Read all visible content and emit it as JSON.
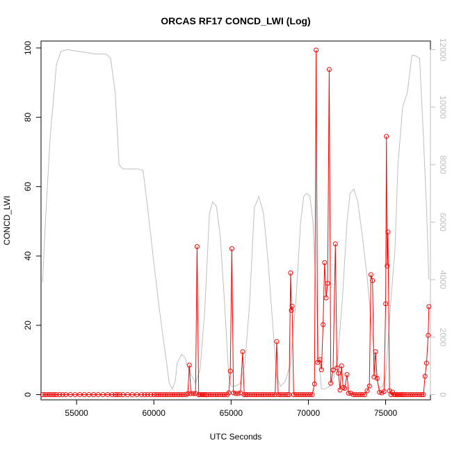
{
  "chart_data": {
    "type": "line",
    "title": "ORCAS RF17 CONCD_LWI (Log)",
    "xlabel": "UTC Seconds",
    "ylabel": "CONCD_LWI",
    "xlim": [
      52700,
      77900
    ],
    "ylim": [
      -1.5,
      102
    ],
    "x_ticks": [
      55000,
      60000,
      65000,
      70000,
      75000
    ],
    "y_ticks": [
      0,
      20,
      40,
      60,
      80,
      100
    ],
    "y2lim": [
      -180,
      12300
    ],
    "y2_ticks": [
      0,
      2000,
      4000,
      6000,
      8000,
      10000,
      12000
    ],
    "grid": false,
    "legend": "none",
    "colors": {
      "concentration": "#ff0000",
      "altitude": "#bebebe",
      "axes": "#000000"
    },
    "series": [
      {
        "role": "concentration",
        "axis": "left",
        "style": "line+points",
        "points": [
          [
            52800,
            0
          ],
          [
            52950,
            0
          ],
          [
            53100,
            0
          ],
          [
            53250,
            0
          ],
          [
            53400,
            0
          ],
          [
            53550,
            0
          ],
          [
            53700,
            0
          ],
          [
            53900,
            0
          ],
          [
            54100,
            0
          ],
          [
            54300,
            0
          ],
          [
            54600,
            0
          ],
          [
            54900,
            0
          ],
          [
            55200,
            0
          ],
          [
            55500,
            0
          ],
          [
            55800,
            0
          ],
          [
            56100,
            0
          ],
          [
            56400,
            0
          ],
          [
            56700,
            0
          ],
          [
            57000,
            0
          ],
          [
            57300,
            0
          ],
          [
            57500,
            0
          ],
          [
            57650,
            0
          ],
          [
            57800,
            0
          ],
          [
            58000,
            0
          ],
          [
            58300,
            0
          ],
          [
            58600,
            0
          ],
          [
            58900,
            0
          ],
          [
            59200,
            0
          ],
          [
            59400,
            0
          ],
          [
            59600,
            0
          ],
          [
            59800,
            0
          ],
          [
            60000,
            0
          ],
          [
            60150,
            0
          ],
          [
            60300,
            0
          ],
          [
            60450,
            0
          ],
          [
            60600,
            0
          ],
          [
            60750,
            0
          ],
          [
            60900,
            0
          ],
          [
            61050,
            0
          ],
          [
            61200,
            0
          ],
          [
            61350,
            0
          ],
          [
            61500,
            0
          ],
          [
            61650,
            0
          ],
          [
            61800,
            0
          ],
          [
            61950,
            0
          ],
          [
            62100,
            0
          ],
          [
            62200,
            0.3
          ],
          [
            62300,
            8.5
          ],
          [
            62400,
            0.3
          ],
          [
            62550,
            0.3
          ],
          [
            62700,
            0.3
          ],
          [
            62800,
            42.7
          ],
          [
            62900,
            0
          ],
          [
            63000,
            0
          ],
          [
            63100,
            0
          ],
          [
            63200,
            0
          ],
          [
            63300,
            0
          ],
          [
            63400,
            0
          ],
          [
            63550,
            0
          ],
          [
            63700,
            0
          ],
          [
            63850,
            0
          ],
          [
            64000,
            0
          ],
          [
            64150,
            0
          ],
          [
            64300,
            0
          ],
          [
            64450,
            0
          ],
          [
            64600,
            0
          ],
          [
            64750,
            0
          ],
          [
            64850,
            0.5
          ],
          [
            64950,
            6.8
          ],
          [
            65050,
            42.1
          ],
          [
            65150,
            0.5
          ],
          [
            65300,
            0.3
          ],
          [
            65450,
            0.3
          ],
          [
            65600,
            0.5
          ],
          [
            65750,
            12.4
          ],
          [
            65850,
            0
          ],
          [
            65950,
            0
          ],
          [
            66050,
            0
          ],
          [
            66200,
            0
          ],
          [
            66350,
            0
          ],
          [
            66500,
            0
          ],
          [
            66650,
            0
          ],
          [
            66800,
            0
          ],
          [
            66950,
            0
          ],
          [
            67100,
            0
          ],
          [
            67250,
            0
          ],
          [
            67400,
            0
          ],
          [
            67550,
            0
          ],
          [
            67700,
            0
          ],
          [
            67850,
            0
          ],
          [
            67950,
            15.3
          ],
          [
            68050,
            0
          ],
          [
            68200,
            0
          ],
          [
            68350,
            0
          ],
          [
            68500,
            0
          ],
          [
            68650,
            0
          ],
          [
            68750,
            0
          ],
          [
            68850,
            35.1
          ],
          [
            68900,
            24.3
          ],
          [
            68950,
            25.5
          ],
          [
            69050,
            0
          ],
          [
            69200,
            0
          ],
          [
            69350,
            0
          ],
          [
            69500,
            0
          ],
          [
            69650,
            0
          ],
          [
            69800,
            0
          ],
          [
            69950,
            0
          ],
          [
            70100,
            0
          ],
          [
            70250,
            0
          ],
          [
            70400,
            3.1
          ],
          [
            70500,
            99.4
          ],
          [
            70600,
            9.3
          ],
          [
            70750,
            10.1
          ],
          [
            70850,
            7.2
          ],
          [
            70950,
            20.2
          ],
          [
            71050,
            38.1
          ],
          [
            71150,
            27.9
          ],
          [
            71250,
            32.1
          ],
          [
            71350,
            93.8
          ],
          [
            71450,
            3.3
          ],
          [
            71600,
            7.1
          ],
          [
            71750,
            43.5
          ],
          [
            71850,
            7.7
          ],
          [
            71950,
            6.2
          ],
          [
            72050,
            1.3
          ],
          [
            72150,
            8.3
          ],
          [
            72250,
            2.1
          ],
          [
            72350,
            1.8
          ],
          [
            72500,
            5.8
          ],
          [
            72600,
            0.4
          ],
          [
            72750,
            0.4
          ],
          [
            72900,
            0
          ],
          [
            73050,
            0
          ],
          [
            73200,
            0
          ],
          [
            73350,
            0
          ],
          [
            73500,
            0
          ],
          [
            73650,
            0
          ],
          [
            73800,
            1.1
          ],
          [
            73950,
            2.5
          ],
          [
            74050,
            34.6
          ],
          [
            74150,
            32.9
          ],
          [
            74250,
            5.1
          ],
          [
            74350,
            12.4
          ],
          [
            74450,
            4.7
          ],
          [
            74600,
            0.7
          ],
          [
            74750,
            0.5
          ],
          [
            74900,
            0.9
          ],
          [
            75000,
            26.2
          ],
          [
            75050,
            74.5
          ],
          [
            75100,
            37.1
          ],
          [
            75150,
            46.9
          ],
          [
            75250,
            1.1
          ],
          [
            75350,
            0
          ],
          [
            75450,
            0.7
          ],
          [
            75550,
            0
          ],
          [
            75650,
            0
          ],
          [
            75750,
            0
          ],
          [
            75850,
            0
          ],
          [
            75950,
            0
          ],
          [
            76050,
            0
          ],
          [
            76150,
            0
          ],
          [
            76300,
            0
          ],
          [
            76450,
            0
          ],
          [
            76600,
            0
          ],
          [
            76750,
            0
          ],
          [
            76900,
            0
          ],
          [
            77050,
            0
          ],
          [
            77200,
            0
          ],
          [
            77350,
            0
          ],
          [
            77450,
            0
          ],
          [
            77550,
            5.3
          ],
          [
            77650,
            9.1
          ],
          [
            77750,
            17.1
          ],
          [
            77800,
            25.4
          ]
        ]
      },
      {
        "role": "altitude",
        "axis": "right",
        "style": "line",
        "points": [
          [
            52800,
            3900
          ],
          [
            53000,
            6200
          ],
          [
            53300,
            9000
          ],
          [
            53700,
            11500
          ],
          [
            54000,
            11950
          ],
          [
            54400,
            12000
          ],
          [
            55000,
            11950
          ],
          [
            55600,
            11900
          ],
          [
            56200,
            11850
          ],
          [
            56900,
            11850
          ],
          [
            57200,
            11700
          ],
          [
            57500,
            10500
          ],
          [
            57750,
            8000
          ],
          [
            58000,
            7850
          ],
          [
            58500,
            7850
          ],
          [
            59000,
            7850
          ],
          [
            59300,
            7800
          ],
          [
            59600,
            6500
          ],
          [
            60000,
            4600
          ],
          [
            60400,
            2800
          ],
          [
            60800,
            1200
          ],
          [
            61000,
            400
          ],
          [
            61200,
            200
          ],
          [
            61400,
            500
          ],
          [
            61500,
            1100
          ],
          [
            61800,
            1400
          ],
          [
            62000,
            1300
          ],
          [
            62300,
            800
          ],
          [
            62700,
            400
          ],
          [
            63000,
            900
          ],
          [
            63300,
            3000
          ],
          [
            63600,
            6300
          ],
          [
            63800,
            6700
          ],
          [
            64050,
            6550
          ],
          [
            64300,
            5500
          ],
          [
            64600,
            3000
          ],
          [
            64850,
            600
          ],
          [
            65000,
            300
          ],
          [
            65300,
            300
          ],
          [
            65600,
            400
          ],
          [
            65900,
            1100
          ],
          [
            66200,
            3200
          ],
          [
            66500,
            6500
          ],
          [
            66800,
            6900
          ],
          [
            67100,
            6300
          ],
          [
            67400,
            4600
          ],
          [
            67700,
            2400
          ],
          [
            67950,
            600
          ],
          [
            68200,
            300
          ],
          [
            68500,
            450
          ],
          [
            68850,
            1100
          ],
          [
            69200,
            3300
          ],
          [
            69500,
            6000
          ],
          [
            69700,
            6900
          ],
          [
            69900,
            7000
          ],
          [
            70100,
            6900
          ],
          [
            70300,
            6000
          ],
          [
            70500,
            3500
          ],
          [
            70700,
            1100
          ],
          [
            70850,
            200
          ],
          [
            71100,
            200
          ],
          [
            71400,
            300
          ],
          [
            71650,
            600
          ],
          [
            71900,
            1300
          ],
          [
            72200,
            3300
          ],
          [
            72500,
            6000
          ],
          [
            72700,
            7000
          ],
          [
            72950,
            7150
          ],
          [
            73200,
            6700
          ],
          [
            73500,
            5500
          ],
          [
            73800,
            4100
          ],
          [
            74100,
            2300
          ],
          [
            74400,
            600
          ],
          [
            74600,
            200
          ],
          [
            74800,
            300
          ],
          [
            75000,
            600
          ],
          [
            75300,
            3000
          ],
          [
            75600,
            5000
          ],
          [
            75800,
            8000
          ],
          [
            76100,
            10000
          ],
          [
            76400,
            10500
          ],
          [
            76700,
            11800
          ],
          [
            76900,
            11800
          ],
          [
            77200,
            11700
          ],
          [
            77400,
            9500
          ],
          [
            77650,
            6500
          ],
          [
            77800,
            4000
          ]
        ]
      }
    ]
  }
}
